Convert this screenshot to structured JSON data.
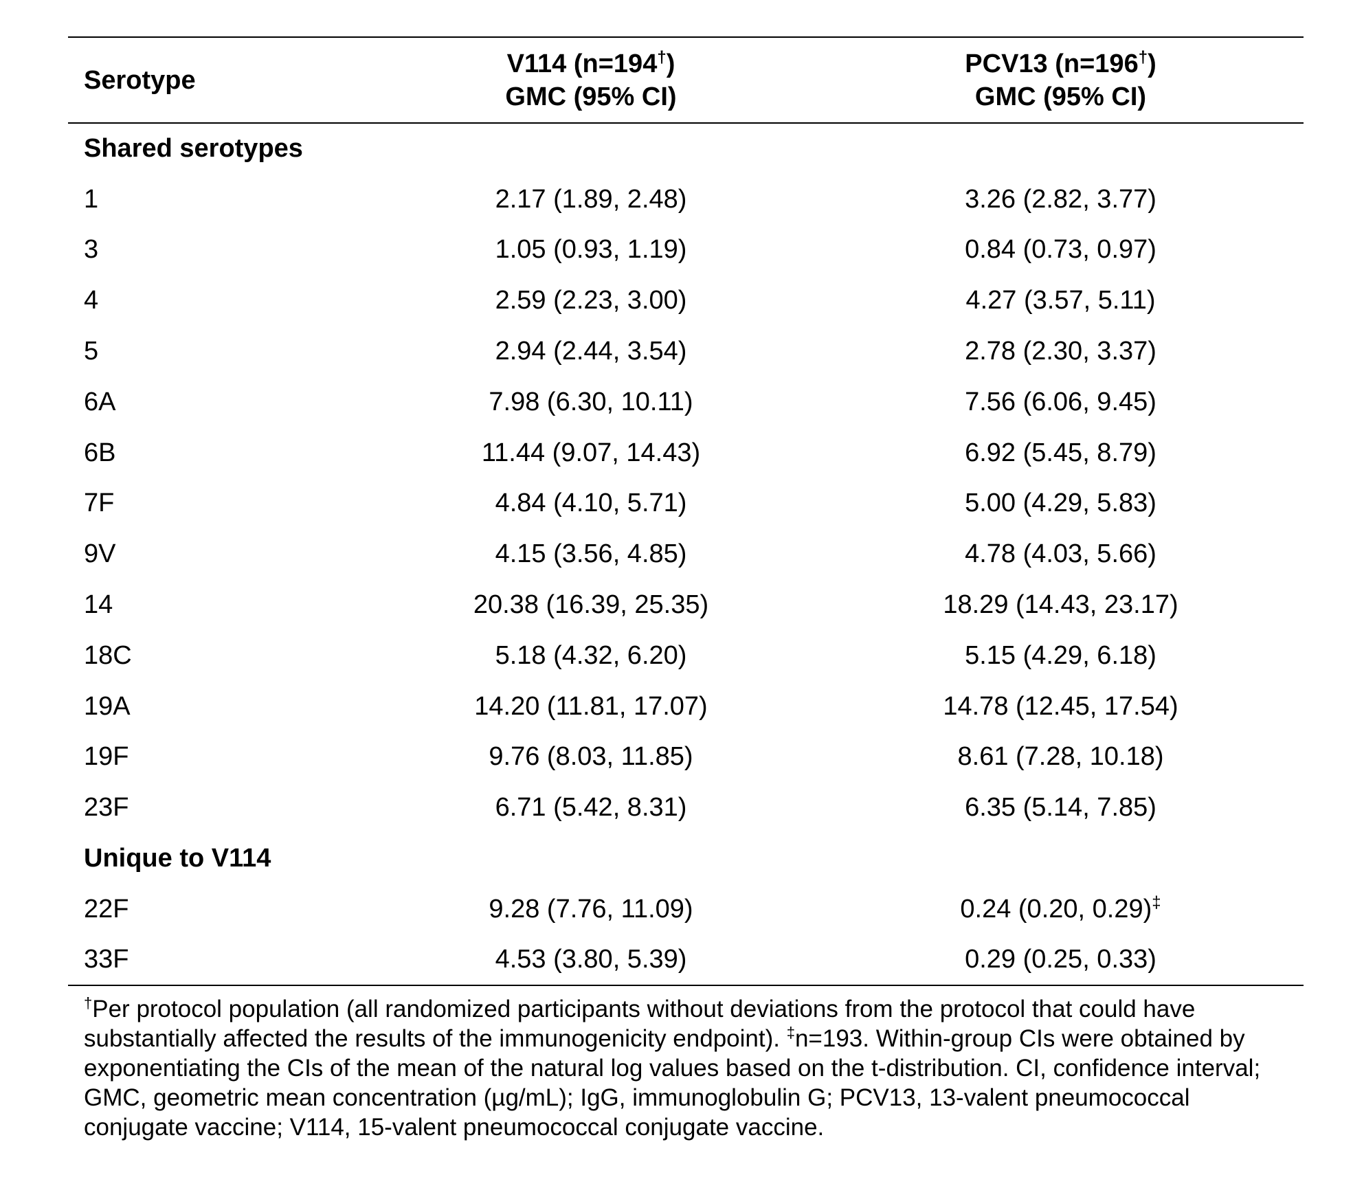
{
  "table": {
    "headers": {
      "serotype": "Serotype",
      "v114_line1": "V114 (n=194",
      "v114_dagger": "†",
      "v114_close": ")",
      "v114_line2": "GMC (95% CI)",
      "pcv13_line1": "PCV13 (n=196",
      "pcv13_dagger": "†",
      "pcv13_close": ")",
      "pcv13_line2": "GMC (95% CI)"
    },
    "sections": [
      {
        "title": "Shared serotypes",
        "rows": [
          {
            "serotype": "1",
            "v114": "2.17 (1.89, 2.48)",
            "pcv13": "3.26 (2.82, 3.77)"
          },
          {
            "serotype": "3",
            "v114": "1.05 (0.93, 1.19)",
            "pcv13": "0.84 (0.73, 0.97)"
          },
          {
            "serotype": "4",
            "v114": "2.59 (2.23, 3.00)",
            "pcv13": "4.27 (3.57, 5.11)"
          },
          {
            "serotype": "5",
            "v114": "2.94 (2.44, 3.54)",
            "pcv13": "2.78 (2.30, 3.37)"
          },
          {
            "serotype": "6A",
            "v114": "7.98 (6.30, 10.11)",
            "pcv13": "7.56 (6.06, 9.45)"
          },
          {
            "serotype": "6B",
            "v114": "11.44 (9.07, 14.43)",
            "pcv13": "6.92 (5.45, 8.79)"
          },
          {
            "serotype": "7F",
            "v114": "4.84 (4.10, 5.71)",
            "pcv13": "5.00 (4.29, 5.83)"
          },
          {
            "serotype": "9V",
            "v114": "4.15 (3.56, 4.85)",
            "pcv13": "4.78 (4.03, 5.66)"
          },
          {
            "serotype": "14",
            "v114": "20.38 (16.39, 25.35)",
            "pcv13": "18.29 (14.43, 23.17)"
          },
          {
            "serotype": "18C",
            "v114": "5.18 (4.32, 6.20)",
            "pcv13": "5.15 (4.29, 6.18)"
          },
          {
            "serotype": "19A",
            "v114": "14.20 (11.81, 17.07)",
            "pcv13": "14.78 (12.45, 17.54)"
          },
          {
            "serotype": "19F",
            "v114": "9.76 (8.03, 11.85)",
            "pcv13": "8.61 (7.28, 10.18)"
          },
          {
            "serotype": "23F",
            "v114": "6.71 (5.42, 8.31)",
            "pcv13": "6.35 (5.14, 7.85)"
          }
        ]
      },
      {
        "title": "Unique to V114",
        "rows": [
          {
            "serotype": "22F",
            "v114": "9.28 (7.76, 11.09)",
            "pcv13": "0.24 (0.20, 0.29)",
            "pcv13_mark": "‡"
          },
          {
            "serotype": "33F",
            "v114": "4.53 (3.80, 5.39)",
            "pcv13": "0.29 (0.25, 0.33)"
          }
        ]
      }
    ]
  },
  "footnote": {
    "dagger_mark": "†",
    "dagger_text": "Per protocol population (all randomized participants without deviations from the protocol that could have substantially affected the results of the immunogenicity endpoint). ",
    "ddagger_mark": "‡",
    "ddagger_text": "n=193. Within-group CIs were obtained by exponentiating the CIs of the mean of the natural log values based on the t-distribution. CI, confidence interval; GMC, geometric mean concentration (µg/mL); IgG, immunoglobulin G; PCV13, 13-valent pneumococcal conjugate vaccine; V114, 15-valent pneumococcal conjugate vaccine."
  }
}
